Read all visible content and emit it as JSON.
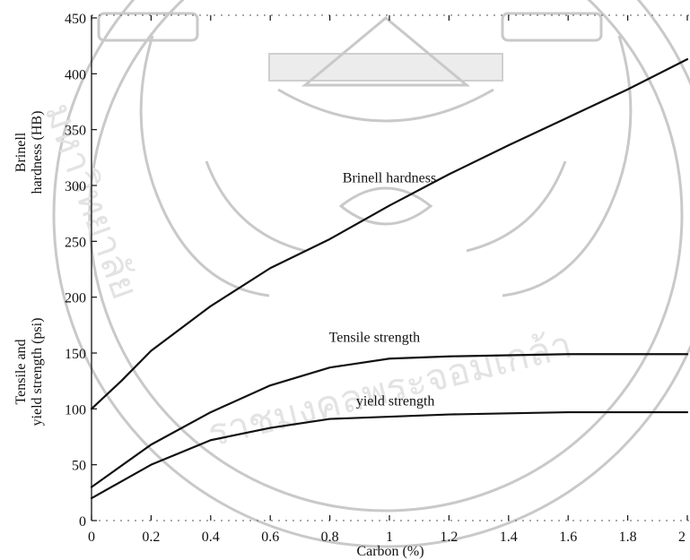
{
  "chart_data": {
    "type": "line",
    "xlabel": "Carbon (%)",
    "ylabel_upper": [
      "Brinell",
      "hardness (HB)"
    ],
    "ylabel_lower": [
      "Tensile and",
      "yield strength (psi)"
    ],
    "xlim": [
      0,
      2
    ],
    "ylim": [
      0,
      450
    ],
    "x_ticks": [
      {
        "value": 0,
        "label": "0"
      },
      {
        "value": 0.2,
        "label": "0.2"
      },
      {
        "value": 0.4,
        "label": "0.4"
      },
      {
        "value": 0.6,
        "label": "0.6"
      },
      {
        "value": 0.8,
        "label": "0.8"
      },
      {
        "value": 1,
        "label": "1"
      },
      {
        "value": 1.2,
        "label": "1.2"
      },
      {
        "value": 1.4,
        "label": "1.4"
      },
      {
        "value": 1.6,
        "label": "1.6"
      },
      {
        "value": 1.8,
        "label": "1.8"
      },
      {
        "value": 2,
        "label": "2"
      }
    ],
    "y_ticks": [
      {
        "value": 0,
        "label": "0"
      },
      {
        "value": 50,
        "label": "50"
      },
      {
        "value": 100,
        "label": "100"
      },
      {
        "value": 150,
        "label": "150"
      },
      {
        "value": 200,
        "label": "200"
      },
      {
        "value": 250,
        "label": "250"
      },
      {
        "value": 300,
        "label": "300"
      },
      {
        "value": 350,
        "label": "350"
      },
      {
        "value": 400,
        "label": "400"
      },
      {
        "value": 450,
        "label": "450"
      }
    ],
    "grid": false,
    "series": [
      {
        "name": "Brinell hardness",
        "label_at": {
          "x": 1.0,
          "y": 303
        },
        "x": [
          0,
          0.1,
          0.2,
          0.4,
          0.6,
          0.8,
          1.0,
          1.2,
          1.4,
          1.6,
          1.8,
          2.0
        ],
        "y": [
          100,
          125,
          152,
          192,
          226,
          252,
          282,
          310,
          336,
          361,
          386,
          413
        ]
      },
      {
        "name": "Tensile strength",
        "label_at": {
          "x": 0.95,
          "y": 160
        },
        "x": [
          0,
          0.2,
          0.4,
          0.6,
          0.8,
          1.0,
          1.2,
          1.4,
          1.6,
          1.8,
          2.0
        ],
        "y": [
          30,
          68,
          97,
          121,
          137,
          145,
          147,
          148,
          149,
          149,
          149
        ]
      },
      {
        "name": "yield strength",
        "label_at": {
          "x": 1.02,
          "y": 103
        },
        "x": [
          0,
          0.2,
          0.4,
          0.6,
          0.8,
          1.0,
          1.2,
          1.4,
          1.6,
          1.8,
          2.0
        ],
        "y": [
          20,
          50,
          72,
          83,
          91,
          93,
          95,
          96,
          97,
          97,
          97
        ]
      }
    ]
  },
  "watermark": {
    "text_left": "มหาวิทยาลัย",
    "text_bottom": "ราชมงคลพระจอมเกล้า"
  }
}
